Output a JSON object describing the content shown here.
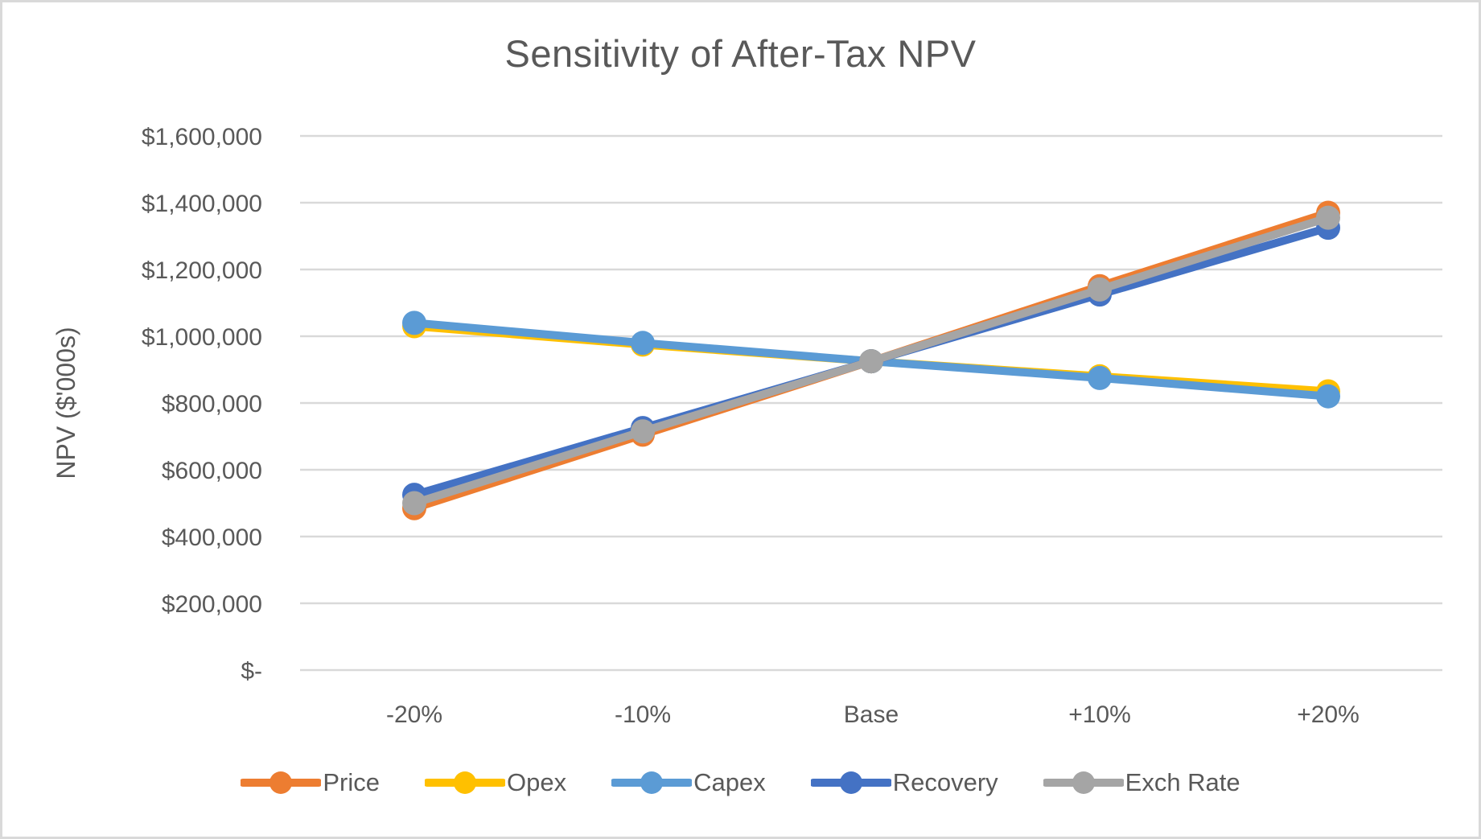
{
  "chart_data": {
    "type": "line",
    "title": "Sensitivity of After-Tax NPV",
    "ylabel": "NPV ($'000s)",
    "xlabel": "",
    "categories": [
      "-20%",
      "-10%",
      "Base",
      "+10%",
      "+20%"
    ],
    "series": [
      {
        "name": "Price",
        "color": "#ED7D31",
        "values": [
          485000,
          705000,
          925000,
          1150000,
          1370000
        ]
      },
      {
        "name": "Opex",
        "color": "#FFC000",
        "values": [
          1030000,
          975000,
          925000,
          880000,
          835000
        ]
      },
      {
        "name": "Capex",
        "color": "#5B9BD5",
        "values": [
          1040000,
          980000,
          925000,
          875000,
          820000
        ]
      },
      {
        "name": "Recovery",
        "color": "#4472C4",
        "values": [
          525000,
          725000,
          925000,
          1125000,
          1325000
        ]
      },
      {
        "name": "Exch Rate",
        "color": "#A5A5A5",
        "values": [
          500000,
          715000,
          925000,
          1140000,
          1355000
        ]
      }
    ],
    "ylim": [
      0,
      1600000
    ],
    "ytick_step": 200000,
    "ytick_labels": [
      "$-",
      "$200,000",
      "$400,000",
      "$600,000",
      "$800,000",
      "$1,000,000",
      "$1,200,000",
      "$1,400,000",
      "$1,600,000"
    ],
    "grid": true,
    "gridline_color": "#D9D9D9",
    "legend_position": "bottom",
    "text_color": "#595959",
    "marker": "circle"
  }
}
